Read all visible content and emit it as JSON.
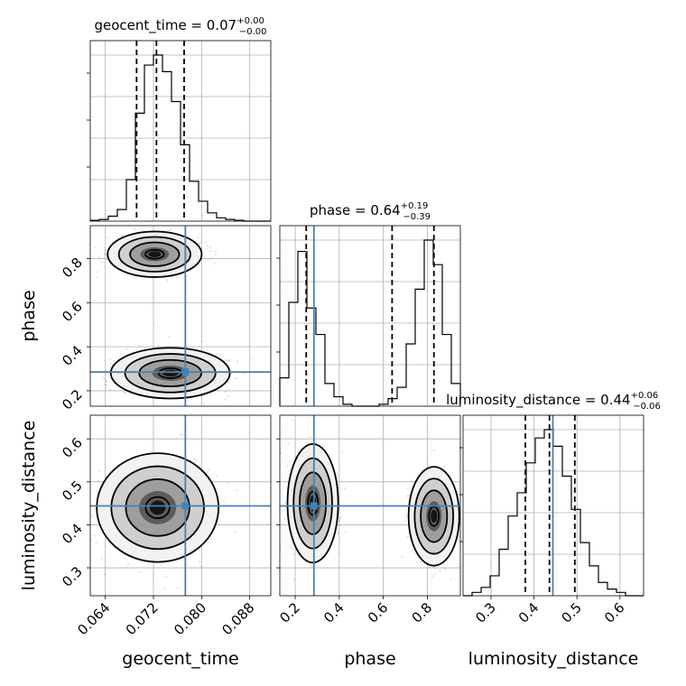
{
  "chart_data": {
    "type": "corner",
    "parameters": [
      {
        "name": "geocent_time",
        "label": "geocent_time",
        "title_prefix": "geocent_time = ",
        "median": "0.07",
        "plus": "+0.00",
        "minus": "−0.00",
        "range": [
          0.0615,
          0.0915
        ],
        "ticks": [
          0.064,
          0.072,
          0.08,
          0.088
        ],
        "tick_labels": [
          "0.064",
          "0.072",
          "0.080",
          "0.088"
        ],
        "truth": 0.0773,
        "quantiles": [
          0.0692,
          0.0725,
          0.0771
        ],
        "hist_bins": [
          0.0615,
          0.063,
          0.0645,
          0.066,
          0.0675,
          0.069,
          0.0705,
          0.072,
          0.0735,
          0.075,
          0.0765,
          0.078,
          0.0795,
          0.081,
          0.0825,
          0.084,
          0.0855,
          0.087,
          0.0885,
          0.09,
          0.0915
        ],
        "hist_heights": [
          0.005,
          0.01,
          0.03,
          0.07,
          0.25,
          0.65,
          0.94,
          1.0,
          0.9,
          0.72,
          0.46,
          0.24,
          0.12,
          0.05,
          0.02,
          0.01,
          0.005,
          0,
          0,
          0
        ]
      },
      {
        "name": "phase",
        "label": "phase",
        "title_prefix": "phase = ",
        "median": "0.64",
        "plus": "+0.19",
        "minus": "−0.39",
        "range": [
          0.13,
          0.95
        ],
        "ticks": [
          0.2,
          0.4,
          0.6,
          0.8
        ],
        "tick_labels": [
          "0.2",
          "0.4",
          "0.6",
          "0.8"
        ],
        "truth": 0.285,
        "quantiles": [
          0.25,
          0.64,
          0.83
        ],
        "hist_bins": [
          0.13,
          0.171,
          0.212,
          0.253,
          0.294,
          0.335,
          0.376,
          0.417,
          0.458,
          0.499,
          0.54,
          0.581,
          0.622,
          0.663,
          0.704,
          0.745,
          0.786,
          0.827,
          0.868,
          0.909,
          0.95
        ],
        "hist_heights": [
          0.15,
          0.55,
          0.82,
          0.52,
          0.38,
          0.12,
          0.05,
          0.01,
          0,
          0,
          0,
          0.01,
          0.04,
          0.1,
          0.33,
          0.62,
          0.88,
          0.75,
          0.38,
          0.12
        ]
      },
      {
        "name": "luminosity_distance",
        "label": "luminosity_distance",
        "title_prefix": "luminosity_distance = ",
        "median": "0.44",
        "plus": "+0.06",
        "minus": "−0.06",
        "range": [
          0.235,
          0.655
        ],
        "ticks": [
          0.3,
          0.4,
          0.5,
          0.6
        ],
        "tick_labels": [
          "0.3",
          "0.4",
          "0.5",
          "0.6"
        ],
        "y_tick_labels": [
          "0.3",
          "0.4",
          "0.5",
          "0.6"
        ],
        "truth": 0.444,
        "quantiles": [
          0.38,
          0.436,
          0.495
        ],
        "hist_bins": [
          0.235,
          0.256,
          0.277,
          0.298,
          0.319,
          0.34,
          0.361,
          0.382,
          0.403,
          0.424,
          0.445,
          0.466,
          0.487,
          0.508,
          0.529,
          0.55,
          0.571,
          0.592,
          0.613,
          0.634,
          0.655
        ],
        "hist_heights": [
          0.0,
          0.02,
          0.05,
          0.12,
          0.28,
          0.48,
          0.62,
          0.8,
          0.95,
          1.0,
          0.9,
          0.72,
          0.52,
          0.32,
          0.18,
          0.08,
          0.04,
          0.02,
          0.0,
          0.0
        ]
      }
    ],
    "pairs": [
      {
        "x": "geocent_time",
        "y": "phase",
        "modes": [
          {
            "cx": 0.0722,
            "cy": 0.82,
            "sx": 0.0034,
            "sy": 0.045
          },
          {
            "cx": 0.0748,
            "cy": 0.28,
            "sx": 0.0043,
            "sy": 0.05
          }
        ]
      },
      {
        "x": "geocent_time",
        "y": "luminosity_distance",
        "modes": [
          {
            "cx": 0.0727,
            "cy": 0.44,
            "sx": 0.0044,
            "sy": 0.055
          }
        ]
      },
      {
        "x": "phase",
        "y": "luminosity_distance",
        "modes": [
          {
            "cx": 0.28,
            "cy": 0.45,
            "sx": 0.05,
            "sy": 0.06
          },
          {
            "cx": 0.83,
            "cy": 0.42,
            "sx": 0.05,
            "sy": 0.05
          }
        ]
      }
    ],
    "colors": {
      "truth": "#4682b4",
      "density": "#000000",
      "grid": "#b0b0b0"
    },
    "grid": true
  }
}
